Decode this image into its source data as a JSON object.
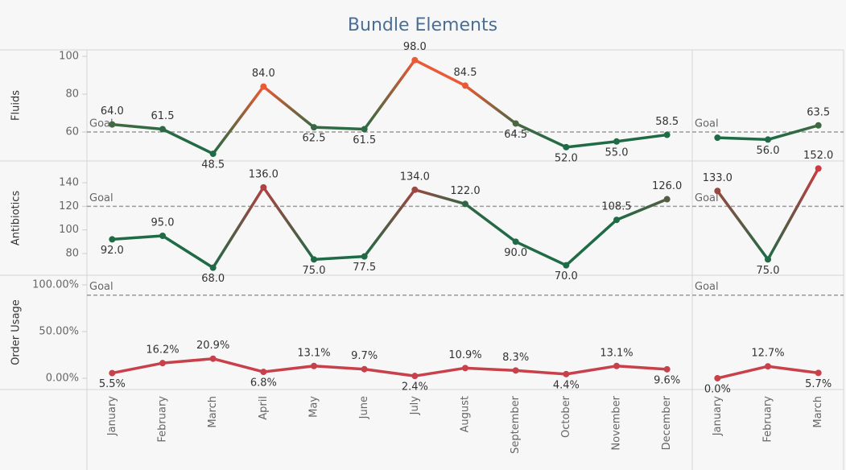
{
  "chart_data": {
    "type": "line",
    "title": "Bundle Elements",
    "panes": [
      {
        "categories": [
          "January",
          "February",
          "March",
          "April",
          "May",
          "June",
          "July",
          "August",
          "September",
          "October",
          "November",
          "December"
        ]
      },
      {
        "categories": [
          "January",
          "February",
          "March"
        ]
      }
    ],
    "rows": [
      {
        "label": "Fluids",
        "ylim": [
          44.7,
          103.4
        ],
        "yticks": [
          60,
          80,
          100
        ],
        "goal": 60,
        "goal_label": "Goal",
        "colors": [
          "#1e6b45",
          "#ea5a35"
        ],
        "series": [
          {
            "values": [
              64.0,
              61.5,
              48.5,
              84.0,
              62.5,
              61.5,
              98.0,
              84.5,
              64.5,
              52.0,
              55.0,
              58.5
            ],
            "value_labels": [
              "64.0",
              "61.5",
              "48.5",
              "84.0",
              "62.5",
              "61.5",
              "98.0",
              "84.5",
              "64.5",
              "52.0",
              "55.0",
              "58.5"
            ]
          },
          {
            "values": [
              57.0,
              56.0,
              63.5
            ],
            "value_labels": [
              null,
              "56.0",
              "63.5"
            ]
          }
        ]
      },
      {
        "label": "Antibiotics",
        "ylim": [
          61.6,
          158.4
        ],
        "yticks": [
          80,
          100,
          120,
          140
        ],
        "goal": 120,
        "goal_label": "Goal",
        "colors": [
          "#1e6b45",
          "#cc3a42"
        ],
        "series": [
          {
            "values": [
              92.0,
              95.0,
              68.0,
              136.0,
              75.0,
              77.5,
              134.0,
              122.0,
              90.0,
              70.0,
              108.5,
              126.0
            ],
            "value_labels": [
              "92.0",
              "95.0",
              "68.0",
              "136.0",
              "75.0",
              "77.5",
              "134.0",
              "122.0",
              "90.0",
              "70.0",
              "108.5",
              "126.0"
            ]
          },
          {
            "values": [
              133.0,
              75.0,
              152.0
            ],
            "value_labels": [
              "133.0",
              "75.0",
              "152.0"
            ]
          }
        ]
      },
      {
        "label": "Order Usage",
        "ylim": [
          -12.1,
          110.3
        ],
        "yticks": [
          {
            "value": 0,
            "label": "0.00%"
          },
          {
            "value": 50,
            "label": "50.00%"
          },
          {
            "value": 100,
            "label": "100.00%"
          }
        ],
        "goal": 89,
        "goal_label": "Goal",
        "colors": [
          "#c8404a",
          "#c8404a"
        ],
        "series": [
          {
            "values": [
              5.5,
              16.2,
              20.9,
              6.8,
              13.1,
              9.7,
              2.4,
              10.9,
              8.3,
              4.4,
              13.1,
              9.6
            ],
            "value_labels": [
              "5.5%",
              "16.2%",
              "20.9%",
              "6.8%",
              "13.1%",
              "9.7%",
              "2.4%",
              "10.9%",
              "8.3%",
              "4.4%",
              "13.1%",
              "9.6%"
            ]
          },
          {
            "values": [
              0.0,
              12.7,
              5.7
            ],
            "value_labels": [
              "0.0%",
              "12.7%",
              "5.7%"
            ]
          }
        ]
      }
    ]
  }
}
